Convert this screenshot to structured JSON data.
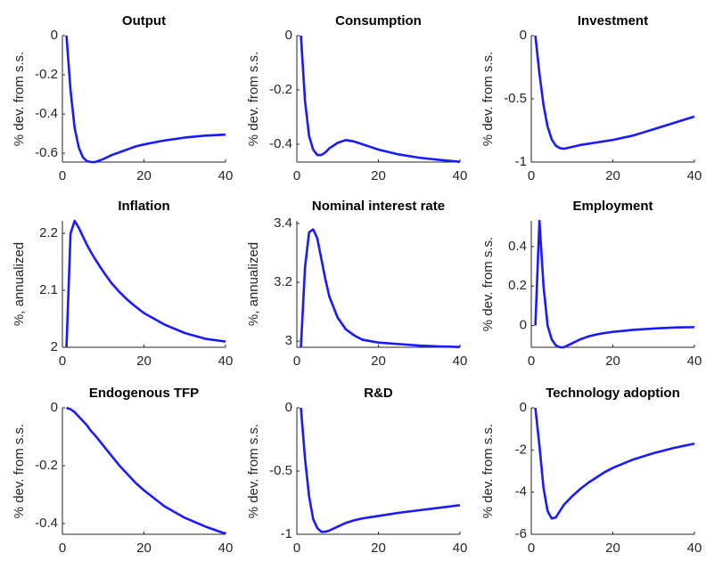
{
  "chart_data": [
    {
      "type": "line",
      "title": "Output",
      "ylabel": "% dev. from s.s.",
      "x": [
        1,
        2,
        3,
        4,
        5,
        6,
        7,
        8,
        10,
        12,
        14,
        16,
        18,
        20,
        25,
        30,
        35,
        40
      ],
      "series": [
        {
          "color": "#1a1aff",
          "values": [
            0,
            -0.28,
            -0.47,
            -0.57,
            -0.62,
            -0.64,
            -0.645,
            -0.645,
            -0.63,
            -0.61,
            -0.595,
            -0.58,
            -0.565,
            -0.555,
            -0.535,
            -0.52,
            -0.51,
            -0.505
          ]
        }
      ],
      "xlim": [
        0,
        40
      ],
      "xticks": [
        0,
        20,
        40
      ],
      "ylim": [
        -0.645,
        0
      ],
      "yticks": [
        -0.6,
        -0.4,
        -0.2,
        0
      ]
    },
    {
      "type": "line",
      "title": "Consumption",
      "ylabel": "% dev. from s.s.",
      "x": [
        1,
        2,
        3,
        4,
        5,
        6,
        7,
        8,
        10,
        12,
        14,
        16,
        18,
        20,
        25,
        30,
        35,
        40
      ],
      "series": [
        {
          "color": "#1a1aff",
          "values": [
            0,
            -0.24,
            -0.37,
            -0.42,
            -0.44,
            -0.44,
            -0.43,
            -0.415,
            -0.395,
            -0.385,
            -0.39,
            -0.4,
            -0.41,
            -0.42,
            -0.438,
            -0.45,
            -0.458,
            -0.465
          ]
        }
      ],
      "xlim": [
        0,
        40
      ],
      "xticks": [
        0,
        20,
        40
      ],
      "ylim": [
        -0.466,
        0
      ],
      "yticks": [
        -0.4,
        -0.2,
        0
      ]
    },
    {
      "type": "line",
      "title": "Investment",
      "ylabel": "% dev. from s.s.",
      "x": [
        1,
        2,
        3,
        4,
        5,
        6,
        7,
        8,
        10,
        12,
        14,
        16,
        18,
        20,
        25,
        30,
        35,
        40
      ],
      "series": [
        {
          "color": "#1a1aff",
          "values": [
            0,
            -0.3,
            -0.55,
            -0.72,
            -0.82,
            -0.87,
            -0.89,
            -0.895,
            -0.88,
            -0.865,
            -0.855,
            -0.845,
            -0.835,
            -0.825,
            -0.79,
            -0.74,
            -0.69,
            -0.64
          ]
        }
      ],
      "xlim": [
        0,
        40
      ],
      "xticks": [
        0,
        20,
        40
      ],
      "ylim": [
        -1,
        0
      ],
      "yticks": [
        -1,
        -0.5,
        0
      ]
    },
    {
      "type": "line",
      "title": "Inflation",
      "ylabel": "%, annualized",
      "x": [
        1,
        2,
        3,
        4,
        5,
        6,
        7,
        8,
        10,
        12,
        14,
        16,
        18,
        20,
        25,
        30,
        35,
        40
      ],
      "series": [
        {
          "color": "#1a1aff",
          "values": [
            2.0,
            2.2,
            2.222,
            2.21,
            2.195,
            2.18,
            2.167,
            2.155,
            2.133,
            2.113,
            2.097,
            2.083,
            2.071,
            2.06,
            2.04,
            2.025,
            2.015,
            2.01
          ]
        }
      ],
      "xlim": [
        0,
        40
      ],
      "xticks": [
        0,
        20,
        40
      ],
      "ylim": [
        2,
        2.222
      ],
      "yticks": [
        2,
        2.1,
        2.2
      ]
    },
    {
      "type": "line",
      "title": "Nominal interest rate",
      "ylabel": "%, annualized",
      "x": [
        1,
        2,
        3,
        4,
        5,
        6,
        7,
        8,
        10,
        12,
        14,
        16,
        18,
        20,
        25,
        30,
        35,
        40
      ],
      "series": [
        {
          "color": "#1a1aff",
          "values": [
            2.98,
            3.25,
            3.37,
            3.38,
            3.35,
            3.28,
            3.21,
            3.15,
            3.08,
            3.04,
            3.02,
            3.005,
            3.0,
            2.995,
            2.99,
            2.985,
            2.982,
            2.98
          ]
        }
      ],
      "xlim": [
        0,
        40
      ],
      "xticks": [
        0,
        20,
        40
      ],
      "ylim": [
        2.979,
        3.409
      ],
      "yticks": [
        3,
        3.2,
        3.4
      ]
    },
    {
      "type": "line",
      "title": "Employment",
      "ylabel": "% dev. from s.s.",
      "x": [
        1,
        2,
        3,
        4,
        5,
        6,
        7,
        8,
        10,
        12,
        14,
        16,
        18,
        20,
        25,
        30,
        35,
        40
      ],
      "series": [
        {
          "color": "#1a1aff",
          "values": [
            0,
            0.53,
            0.2,
            0.0,
            -0.07,
            -0.1,
            -0.11,
            -0.11,
            -0.09,
            -0.07,
            -0.055,
            -0.045,
            -0.038,
            -0.032,
            -0.022,
            -0.015,
            -0.01,
            -0.008
          ]
        }
      ],
      "xlim": [
        0,
        40
      ],
      "xticks": [
        0,
        20,
        40
      ],
      "ylim": [
        -0.11,
        0.53
      ],
      "yticks": [
        0,
        0.2,
        0.4
      ]
    },
    {
      "type": "line",
      "title": "Endogenous TFP",
      "ylabel": "% dev. from s.s.",
      "x": [
        1,
        2,
        3,
        4,
        5,
        6,
        7,
        8,
        10,
        12,
        14,
        16,
        18,
        20,
        25,
        30,
        35,
        40
      ],
      "series": [
        {
          "color": "#1a1aff",
          "values": [
            0,
            -0.005,
            -0.015,
            -0.03,
            -0.045,
            -0.06,
            -0.08,
            -0.095,
            -0.13,
            -0.165,
            -0.2,
            -0.23,
            -0.26,
            -0.285,
            -0.34,
            -0.38,
            -0.41,
            -0.435
          ]
        }
      ],
      "xlim": [
        0,
        40
      ],
      "xticks": [
        0,
        20,
        40
      ],
      "ylim": [
        -0.437,
        0
      ],
      "yticks": [
        -0.4,
        -0.2,
        0
      ]
    },
    {
      "type": "line",
      "title": "R&D",
      "ylabel": "% dev. from s.s.",
      "x": [
        1,
        2,
        3,
        4,
        5,
        6,
        7,
        8,
        10,
        12,
        14,
        16,
        18,
        20,
        25,
        30,
        35,
        40
      ],
      "series": [
        {
          "color": "#1a1aff",
          "values": [
            0,
            -0.4,
            -0.7,
            -0.88,
            -0.95,
            -0.98,
            -0.98,
            -0.97,
            -0.94,
            -0.91,
            -0.89,
            -0.875,
            -0.865,
            -0.855,
            -0.83,
            -0.81,
            -0.79,
            -0.77
          ]
        }
      ],
      "xlim": [
        0,
        40
      ],
      "xticks": [
        0,
        20,
        40
      ],
      "ylim": [
        -1,
        0
      ],
      "yticks": [
        -1,
        -0.5,
        0
      ]
    },
    {
      "type": "line",
      "title": "Technology adoption",
      "ylabel": "% dev. from s.s.",
      "x": [
        1,
        2,
        3,
        4,
        5,
        6,
        7,
        8,
        10,
        12,
        14,
        16,
        18,
        20,
        25,
        30,
        35,
        40
      ],
      "series": [
        {
          "color": "#1a1aff",
          "values": [
            0,
            -1.8,
            -3.8,
            -4.9,
            -5.25,
            -5.2,
            -4.9,
            -4.6,
            -4.2,
            -3.85,
            -3.55,
            -3.3,
            -3.05,
            -2.85,
            -2.45,
            -2.15,
            -1.9,
            -1.7
          ]
        }
      ],
      "xlim": [
        0,
        40
      ],
      "xticks": [
        0,
        20,
        40
      ],
      "ylim": [
        -6,
        0
      ],
      "yticks": [
        -6,
        -4,
        -2,
        0
      ]
    }
  ]
}
